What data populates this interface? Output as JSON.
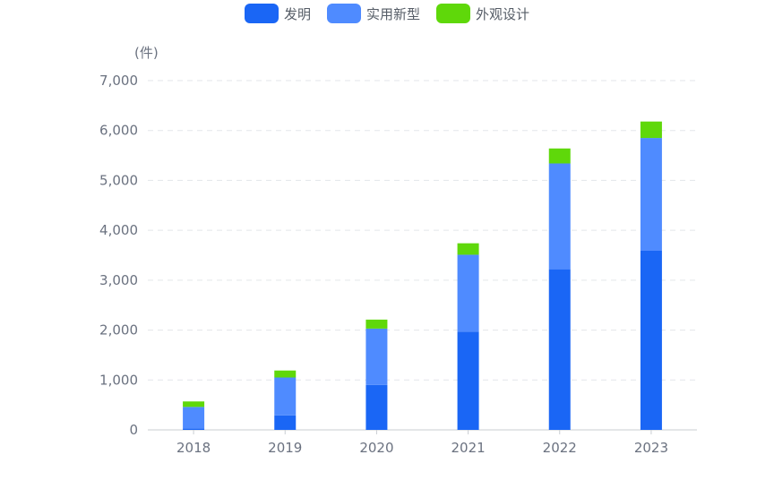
{
  "legend": [
    {
      "label": "发明",
      "color": "#1a66f5"
    },
    {
      "label": "实用新型",
      "color": "#4f8bff"
    },
    {
      "label": "外观设计",
      "color": "#5fd80a"
    }
  ],
  "unit_label": "(件)",
  "chart_data": {
    "type": "bar",
    "stacked": true,
    "categories": [
      "2018",
      "2019",
      "2020",
      "2021",
      "2022",
      "2023"
    ],
    "series": [
      {
        "name": "发明",
        "color": "#1a66f5",
        "values": [
          30,
          290,
          900,
          1970,
          3220,
          3590
        ]
      },
      {
        "name": "实用新型",
        "color": "#4f8bff",
        "values": [
          430,
          760,
          1130,
          1540,
          2120,
          2260
        ]
      },
      {
        "name": "外观设计",
        "color": "#5fd80a",
        "values": [
          110,
          140,
          180,
          230,
          300,
          330
        ]
      }
    ],
    "ylim": [
      0,
      7000
    ],
    "yticks": [
      0,
      1000,
      2000,
      3000,
      4000,
      5000,
      6000,
      7000
    ],
    "ytick_labels": [
      "0",
      "1,000",
      "2,000",
      "3,000",
      "4,000",
      "5,000",
      "6,000",
      "7,000"
    ],
    "grid": true,
    "legend_position": "top-center"
  }
}
